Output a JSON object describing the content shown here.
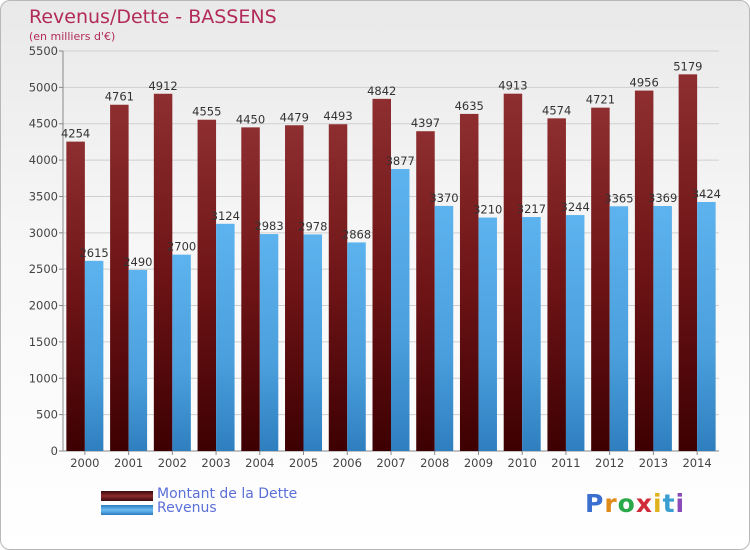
{
  "chart_data": {
    "type": "bar",
    "title": "Revenus/Dette - BASSENS",
    "subtitle": "(en milliers d'€)",
    "categories": [
      "2000",
      "2001",
      "2002",
      "2003",
      "2004",
      "2005",
      "2006",
      "2007",
      "2008",
      "2009",
      "2010",
      "2011",
      "2012",
      "2013",
      "2014"
    ],
    "series": [
      {
        "name": "Montant de la Dette",
        "color": "#6e1416",
        "values": [
          4254,
          4761,
          4912,
          4555,
          4450,
          4479,
          4493,
          4842,
          4397,
          4635,
          4913,
          4574,
          4721,
          4956,
          5179
        ]
      },
      {
        "name": "Revenus",
        "color": "#4ba3e0",
        "values": [
          2615,
          2490,
          2700,
          3124,
          2983,
          2978,
          2868,
          3877,
          3370,
          3210,
          3217,
          3244,
          3365,
          3369,
          3424
        ]
      }
    ],
    "ylim": [
      0,
      5500
    ],
    "yticks": [
      0,
      500,
      1000,
      1500,
      2000,
      2500,
      3000,
      3500,
      4000,
      4500,
      5000,
      5500
    ],
    "grid": true,
    "legend_position": "bottom-left"
  },
  "legend": [
    {
      "label": "Montant de la Dette",
      "color": "#6e1416"
    },
    {
      "label": "Revenus",
      "color": "#4ba3e0"
    }
  ],
  "brand": {
    "text": "Proxiti"
  }
}
